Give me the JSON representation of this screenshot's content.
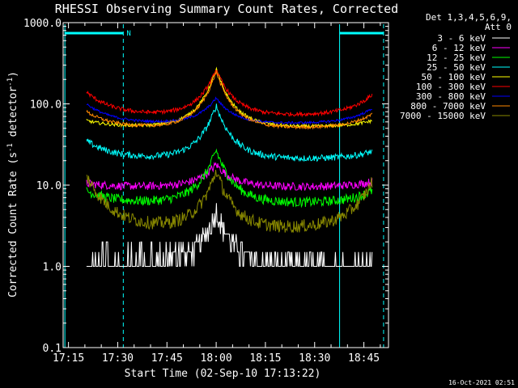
{
  "chart_data": {
    "type": "line",
    "title": "RHESSI Observing Summary Count Rates, Corrected",
    "xlabel": "Start Time (02-Sep-10 17:13:22)",
    "ylabel": "Corrected Count Rate (s-1 detector-1)",
    "ylabel_parts": {
      "a": "Corrected Count Rate (s",
      "b": "-1",
      "c": " detector",
      "d": "-1",
      "e": ")"
    },
    "x_ticks": [
      "17:15",
      "17:30",
      "17:45",
      "18:00",
      "18:15",
      "18:30",
      "18:45"
    ],
    "x_tick_minutes": [
      15,
      30,
      45,
      60,
      75,
      90,
      105
    ],
    "y_ticks": [
      "0.1",
      "1.0",
      "10.0",
      "100.0",
      "1000.0"
    ],
    "y_tick_values": [
      0.1,
      1,
      10,
      100,
      1000
    ],
    "y_scale": "log",
    "ylim": [
      0.1,
      1000
    ],
    "xlim_minutes": [
      13.37,
      112.5
    ],
    "legend_header": [
      "Det 1,3,4,5,6,9,",
      "Att 0"
    ],
    "legend_position": "right",
    "footer_date": "16-Oct-2021 02:51",
    "night_label": "N",
    "time_markers_minutes": [
      13.9,
      31.7,
      97.6,
      111.0
    ],
    "time_marker_styles": [
      "solid",
      "dashed",
      "solid",
      "dashed"
    ],
    "marker_color": "#00ffff",
    "night_bars": [
      [
        13.9,
        31.7
      ],
      [
        97.6,
        111.0
      ]
    ],
    "data_window_minutes": [
      20.5,
      107.5
    ],
    "peak_minute": 60.0,
    "series": [
      {
        "name": "3 - 6 keV",
        "color": "#ffffff",
        "base": 1.0,
        "peak": 4.8,
        "left_level": 1.0,
        "right_level": 1.0,
        "noise": 0.14
      },
      {
        "name": "6 - 12 keV",
        "color": "#ff00ff",
        "base": 9.5,
        "peak": 18,
        "left_level": 10.5,
        "right_level": 11,
        "noise": 0.05
      },
      {
        "name": "12 - 25 keV",
        "color": "#00ff00",
        "base": 6.0,
        "peak": 27,
        "left_level": 8.5,
        "right_level": 8.5,
        "noise": 0.06
      },
      {
        "name": "25 - 50 keV",
        "color": "#00ffff",
        "base": 21,
        "peak": 95,
        "left_level": 35,
        "right_level": 26,
        "noise": 0.04
      },
      {
        "name": "50 - 100 keV",
        "color": "#ffff00",
        "base": 52,
        "peak": 270,
        "left_level": 62,
        "right_level": 62,
        "noise": 0.02
      },
      {
        "name": "100 - 300 keV",
        "color": "#ff0000",
        "base": 72,
        "peak": 265,
        "left_level": 140,
        "right_level": 130,
        "noise": 0.025
      },
      {
        "name": "300 - 800 keV",
        "color": "#0000ff",
        "base": 57,
        "peak": 118,
        "left_level": 100,
        "right_level": 88,
        "noise": 0.015
      },
      {
        "name": "800 - 7000 keV",
        "color": "#ff8800",
        "base": 50,
        "peak": 250,
        "left_level": 80,
        "right_level": 75,
        "noise": 0.02
      },
      {
        "name": "7000 - 15000 keV",
        "color": "#888800",
        "base": 2.9,
        "peak": 15,
        "left_level": 13,
        "right_level": 11,
        "noise": 0.08
      }
    ]
  }
}
